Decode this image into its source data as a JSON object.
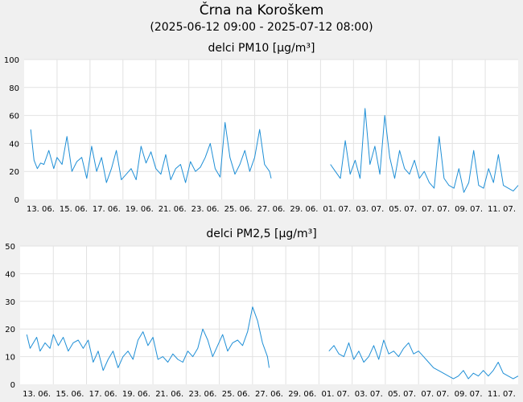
{
  "page": {
    "title": "Črna na Koroškem",
    "subtitle": "(2025-06-12 09:00 - 2025-07-12 08:00)"
  },
  "colors": {
    "line": "#1f8fd6",
    "grid": "#e2e2e2",
    "plot_bg": "#ffffff",
    "page_bg": "#f0f0f0"
  },
  "chart_data": [
    {
      "type": "line",
      "title": "delci PM10 [µg/m³]",
      "ylim": [
        0,
        100
      ],
      "yticks": [
        "0",
        "20",
        "40",
        "60",
        "80",
        "100"
      ],
      "xlim": [
        0,
        30
      ],
      "xticks": [
        {
          "label": "13. 06.",
          "x": 1
        },
        {
          "label": "15. 06.",
          "x": 3
        },
        {
          "label": "17. 06.",
          "x": 5
        },
        {
          "label": "19. 06.",
          "x": 7
        },
        {
          "label": "21. 06.",
          "x": 9
        },
        {
          "label": "23. 06.",
          "x": 11
        },
        {
          "label": "25. 06.",
          "x": 13
        },
        {
          "label": "27. 06.",
          "x": 15
        },
        {
          "label": "29. 06.",
          "x": 17
        },
        {
          "label": "01. 07.",
          "x": 19
        },
        {
          "label": "03. 07.",
          "x": 21
        },
        {
          "label": "05. 07.",
          "x": 23
        },
        {
          "label": "07. 07.",
          "x": 25
        },
        {
          "label": "09. 07.",
          "x": 27
        },
        {
          "label": "11. 07.",
          "x": 29
        }
      ],
      "x_unit": "days from 2025-06-12 00:00",
      "segments": [
        {
          "x": [
            0.4,
            0.6,
            0.8,
            1.0,
            1.2,
            1.5,
            1.8,
            2.0,
            2.3,
            2.6,
            2.9,
            3.2,
            3.5,
            3.8,
            4.1,
            4.4,
            4.7,
            5.0,
            5.3,
            5.6,
            5.9,
            6.2,
            6.5,
            6.8,
            7.1,
            7.4,
            7.7,
            8.0,
            8.3,
            8.6,
            8.9,
            9.2,
            9.5,
            9.8,
            10.1,
            10.4,
            10.7,
            11.0,
            11.3,
            11.6,
            11.9,
            12.2,
            12.5,
            12.8,
            13.1,
            13.4,
            13.7,
            14.0,
            14.3,
            14.6,
            14.9,
            15.0
          ],
          "y": [
            50,
            28,
            22,
            26,
            25,
            35,
            22,
            30,
            25,
            45,
            20,
            27,
            30,
            15,
            38,
            20,
            30,
            12,
            22,
            35,
            14,
            18,
            22,
            14,
            38,
            26,
            34,
            22,
            18,
            32,
            14,
            22,
            25,
            12,
            27,
            20,
            23,
            30,
            40,
            22,
            16,
            55,
            30,
            18,
            25,
            35,
            20,
            30,
            50,
            25,
            20,
            15
          ]
        },
        {
          "x": [
            18.6,
            18.9,
            19.2,
            19.5,
            19.8,
            20.1,
            20.4,
            20.7,
            21.0,
            21.3,
            21.6,
            21.9,
            22.2,
            22.5,
            22.8,
            23.1,
            23.4,
            23.7,
            24.0,
            24.3,
            24.6,
            24.9,
            25.2,
            25.5,
            25.8,
            26.1,
            26.4,
            26.7,
            27.0,
            27.3,
            27.6,
            27.9,
            28.2,
            28.5,
            28.8,
            29.1,
            29.4,
            29.7,
            30.0
          ],
          "y": [
            25,
            20,
            15,
            42,
            18,
            28,
            15,
            65,
            25,
            38,
            18,
            60,
            30,
            15,
            35,
            22,
            18,
            28,
            15,
            20,
            12,
            8,
            45,
            15,
            10,
            8,
            22,
            5,
            12,
            35,
            10,
            8,
            22,
            12,
            32,
            10,
            8,
            6,
            10
          ]
        }
      ]
    },
    {
      "type": "line",
      "title": "delci PM2,5 [µg/m³]",
      "ylim": [
        0,
        50
      ],
      "yticks": [
        "0",
        "10",
        "20",
        "30",
        "40",
        "50"
      ],
      "xlim": [
        0,
        30
      ],
      "xticks": [
        {
          "label": "13. 06.",
          "x": 1
        },
        {
          "label": "15. 06.",
          "x": 3
        },
        {
          "label": "17. 06.",
          "x": 5
        },
        {
          "label": "19. 06.",
          "x": 7
        },
        {
          "label": "21. 06.",
          "x": 9
        },
        {
          "label": "23. 06.",
          "x": 11
        },
        {
          "label": "25. 06.",
          "x": 13
        },
        {
          "label": "27. 06.",
          "x": 15
        },
        {
          "label": "29. 06.",
          "x": 17
        },
        {
          "label": "01. 07.",
          "x": 19
        },
        {
          "label": "03. 07.",
          "x": 21
        },
        {
          "label": "05. 07.",
          "x": 23
        },
        {
          "label": "07. 07.",
          "x": 25
        },
        {
          "label": "09. 07.",
          "x": 27
        },
        {
          "label": "11. 07.",
          "x": 29
        }
      ],
      "x_unit": "days from 2025-06-12 00:00",
      "segments": [
        {
          "x": [
            0.4,
            0.6,
            0.8,
            1.0,
            1.2,
            1.5,
            1.8,
            2.0,
            2.3,
            2.6,
            2.9,
            3.2,
            3.5,
            3.8,
            4.1,
            4.4,
            4.7,
            5.0,
            5.3,
            5.6,
            5.9,
            6.2,
            6.5,
            6.8,
            7.1,
            7.4,
            7.7,
            8.0,
            8.3,
            8.6,
            8.9,
            9.2,
            9.5,
            9.8,
            10.1,
            10.4,
            10.7,
            11.0,
            11.3,
            11.6,
            11.9,
            12.2,
            12.5,
            12.8,
            13.1,
            13.4,
            13.7,
            14.0,
            14.3,
            14.6,
            14.9,
            15.0
          ],
          "y": [
            18,
            13,
            15,
            17,
            12,
            15,
            13,
            18,
            14,
            17,
            12,
            15,
            16,
            13,
            16,
            8,
            12,
            5,
            9,
            12,
            6,
            10,
            12,
            9,
            16,
            19,
            14,
            17,
            9,
            10,
            8,
            11,
            9,
            8,
            12,
            10,
            13,
            20,
            16,
            10,
            14,
            18,
            12,
            15,
            16,
            14,
            19,
            28,
            23,
            15,
            10,
            6
          ]
        },
        {
          "x": [
            18.6,
            18.9,
            19.2,
            19.5,
            19.8,
            20.1,
            20.4,
            20.7,
            21.0,
            21.3,
            21.6,
            21.9,
            22.2,
            22.5,
            22.8,
            23.1,
            23.4,
            23.7,
            24.0,
            24.3,
            24.6,
            24.9,
            25.2,
            25.5,
            25.8,
            26.1,
            26.4,
            26.7,
            27.0,
            27.3,
            27.6,
            27.9,
            28.2,
            28.5,
            28.8,
            29.1,
            29.4,
            29.7,
            30.0
          ],
          "y": [
            12,
            14,
            11,
            10,
            15,
            9,
            12,
            8,
            10,
            14,
            9,
            16,
            11,
            12,
            10,
            13,
            15,
            11,
            12,
            10,
            8,
            6,
            5,
            4,
            3,
            2,
            3,
            5,
            2,
            4,
            3,
            5,
            3,
            5,
            8,
            4,
            3,
            2,
            3
          ]
        }
      ]
    }
  ]
}
